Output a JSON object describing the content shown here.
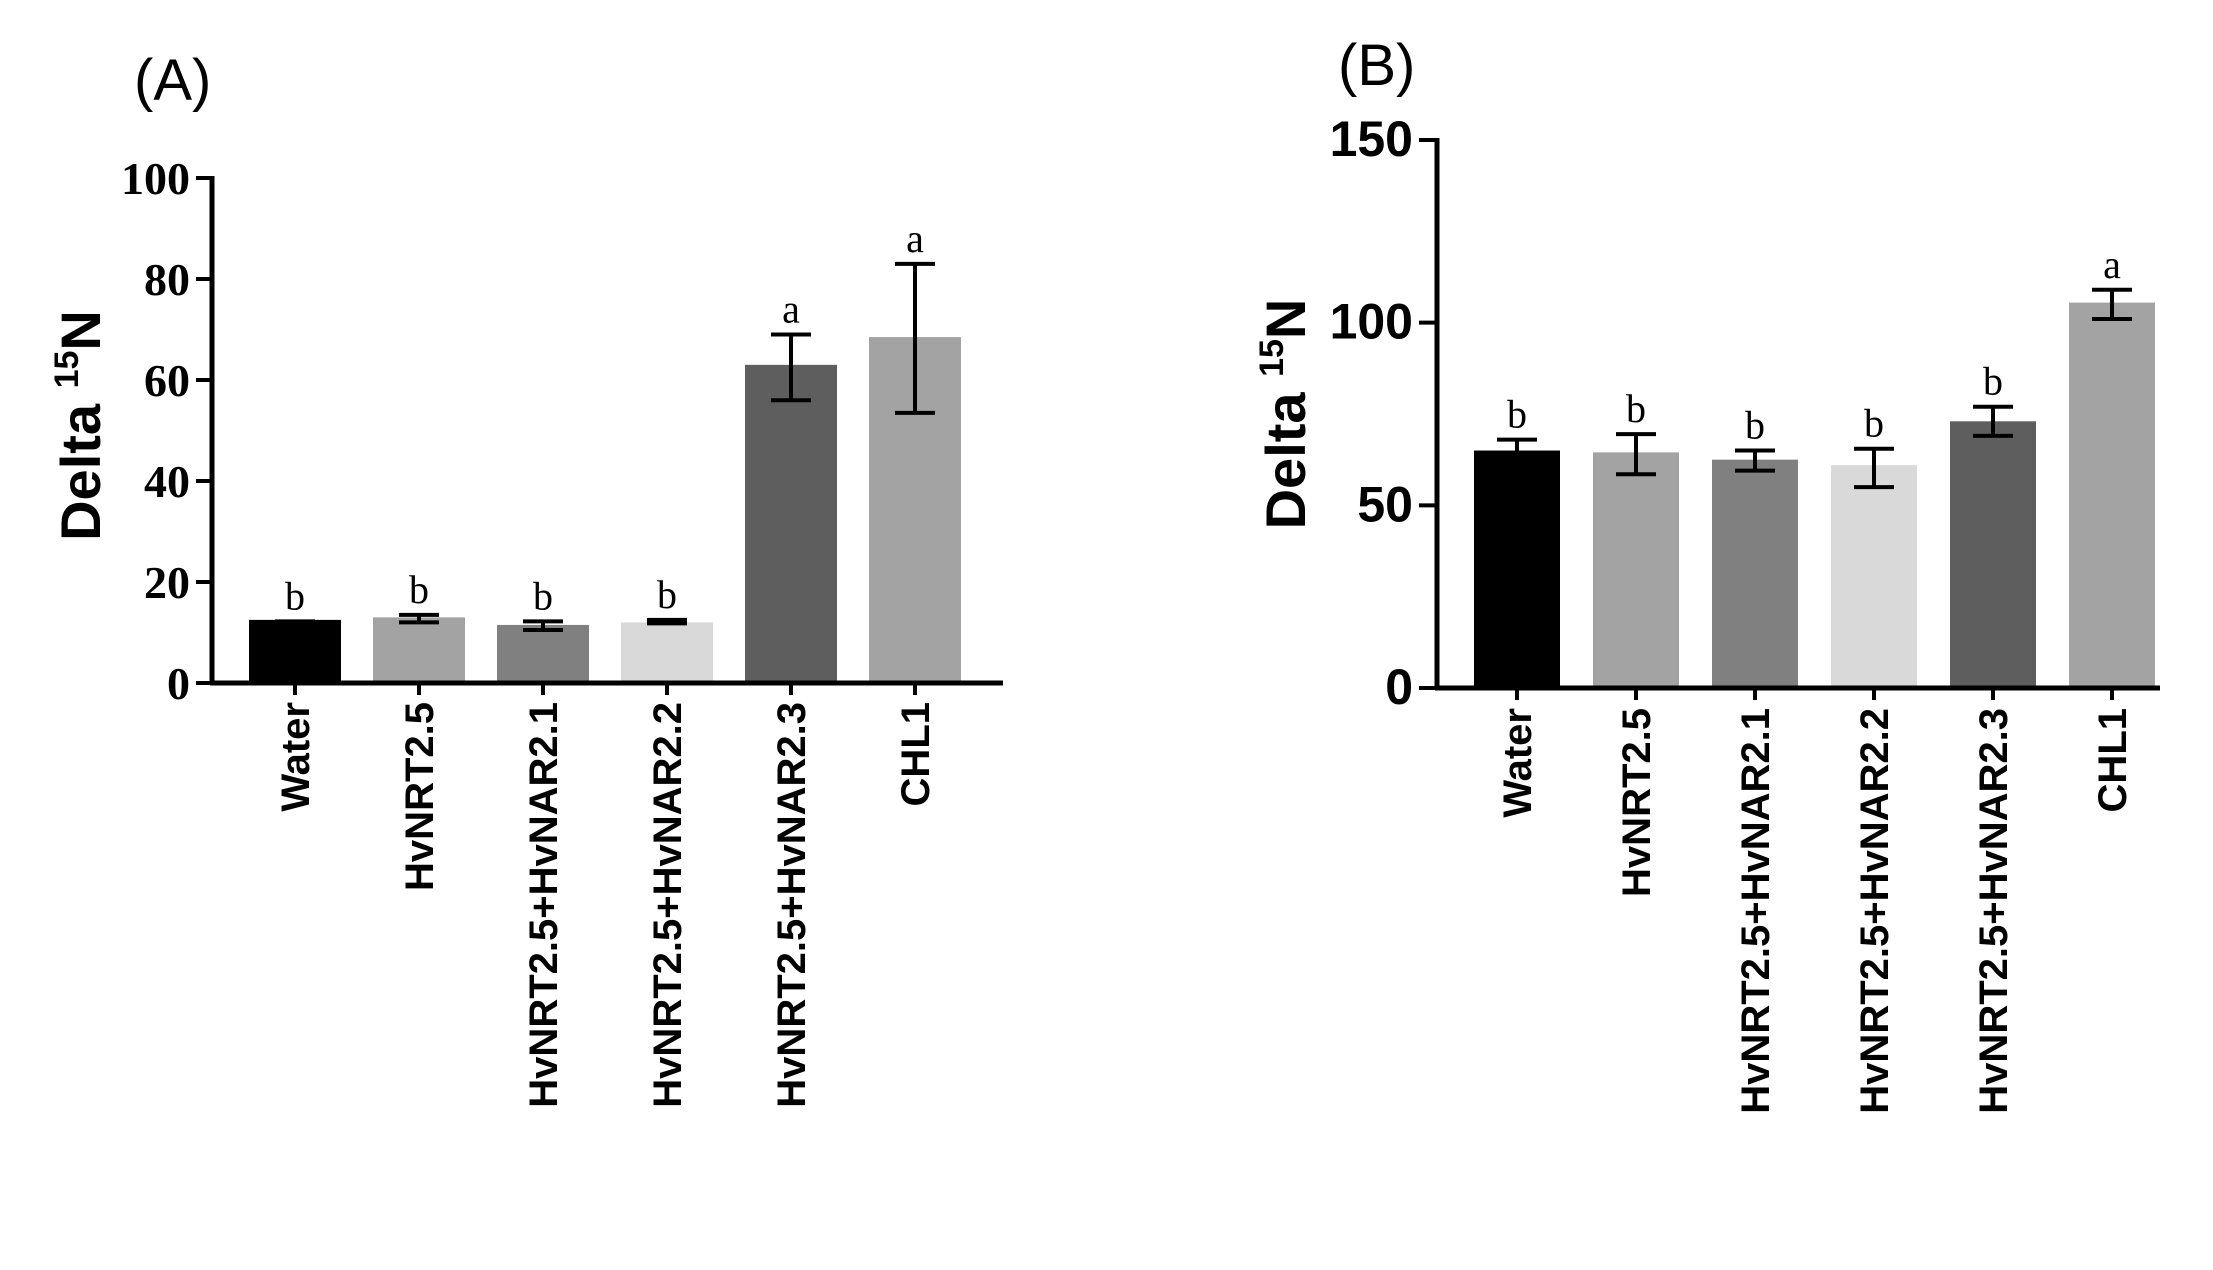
{
  "chart_data": [
    {
      "type": "bar",
      "panel_label": "(A)",
      "ylabel": "Delta",
      "ylabel_sup": "15",
      "ylabel_suffix": "N",
      "ylim": [
        0,
        100
      ],
      "yticks": [
        0,
        20,
        40,
        60,
        80,
        100
      ],
      "categories": [
        "Water",
        "HvNRT2.5",
        "HvNRT2.5+HvNAR2.1",
        "HvNRT2.5+HvNAR2.2",
        "HvNRT2.5+HvNAR2.3",
        "CHL1"
      ],
      "values": [
        12.5,
        13,
        11.5,
        12,
        63,
        68.5
      ],
      "error_low": [
        11,
        12,
        10.5,
        11.8,
        56,
        53.5
      ],
      "error_high": [
        12.2,
        13.5,
        12.2,
        12.5,
        69,
        83
      ],
      "letters": [
        "b",
        "b",
        "b",
        "b",
        "a",
        "a"
      ],
      "colors": [
        "#000000",
        "#a3a3a3",
        "#808080",
        "#d9d9d9",
        "#5e5e5e",
        "#a3a3a3"
      ],
      "grid": false
    },
    {
      "type": "bar",
      "panel_label": "(B)",
      "ylabel": "Delta",
      "ylabel_sup": "15",
      "ylabel_suffix": "N",
      "ylim": [
        0,
        150
      ],
      "yticks": [
        0,
        50,
        100,
        150
      ],
      "categories": [
        "Water",
        "HvNRT2.5",
        "HvNRT2.5+HvNAR2.1",
        "HvNRT2.5+HvNAR2.2",
        "HvNRT2.5+HvNAR2.3",
        "CHL1"
      ],
      "values": [
        65,
        64.5,
        62.5,
        61,
        73,
        105.5
      ],
      "error_low": [
        62,
        58.5,
        59.5,
        55,
        69,
        101
      ],
      "error_high": [
        68,
        69.5,
        65,
        65.5,
        77,
        109
      ],
      "letters": [
        "b",
        "b",
        "b",
        "b",
        "b",
        "a"
      ],
      "colors": [
        "#000000",
        "#a3a3a3",
        "#808080",
        "#d9d9d9",
        "#5e5e5e",
        "#a3a3a3"
      ],
      "grid": false
    }
  ]
}
